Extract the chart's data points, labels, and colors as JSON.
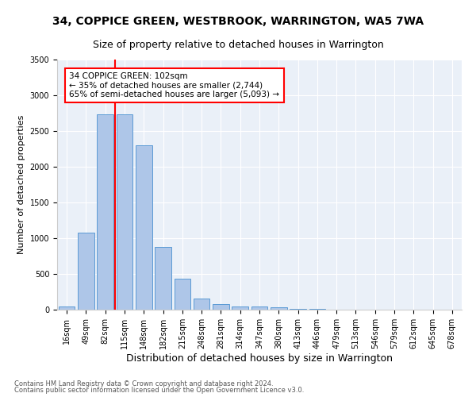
{
  "title": "34, COPPICE GREEN, WESTBROOK, WARRINGTON, WA5 7WA",
  "subtitle": "Size of property relative to detached houses in Warrington",
  "xlabel": "Distribution of detached houses by size in Warrington",
  "ylabel": "Number of detached properties",
  "categories": [
    "16sqm",
    "49sqm",
    "82sqm",
    "115sqm",
    "148sqm",
    "182sqm",
    "215sqm",
    "248sqm",
    "281sqm",
    "314sqm",
    "347sqm",
    "380sqm",
    "413sqm",
    "446sqm",
    "479sqm",
    "513sqm",
    "546sqm",
    "579sqm",
    "612sqm",
    "645sqm",
    "678sqm"
  ],
  "values": [
    50,
    1080,
    2730,
    2730,
    2300,
    880,
    430,
    160,
    80,
    50,
    50,
    30,
    10,
    10,
    5,
    5,
    3,
    2,
    2,
    1,
    1
  ],
  "bar_color": "#aec6e8",
  "bar_edgecolor": "#5b9bd5",
  "vline_color": "red",
  "annotation_text": "34 COPPICE GREEN: 102sqm\n← 35% of detached houses are smaller (2,744)\n65% of semi-detached houses are larger (5,093) →",
  "annotation_box_color": "white",
  "annotation_box_edgecolor": "red",
  "ylim": [
    0,
    3500
  ],
  "yticks": [
    0,
    500,
    1000,
    1500,
    2000,
    2500,
    3000,
    3500
  ],
  "title_fontsize": 10,
  "subtitle_fontsize": 9,
  "xlabel_fontsize": 9,
  "ylabel_fontsize": 8,
  "tick_fontsize": 7,
  "annot_fontsize": 7.5,
  "footer1": "Contains HM Land Registry data © Crown copyright and database right 2024.",
  "footer2": "Contains public sector information licensed under the Open Government Licence v3.0.",
  "plot_bg_color": "#eaf0f8"
}
